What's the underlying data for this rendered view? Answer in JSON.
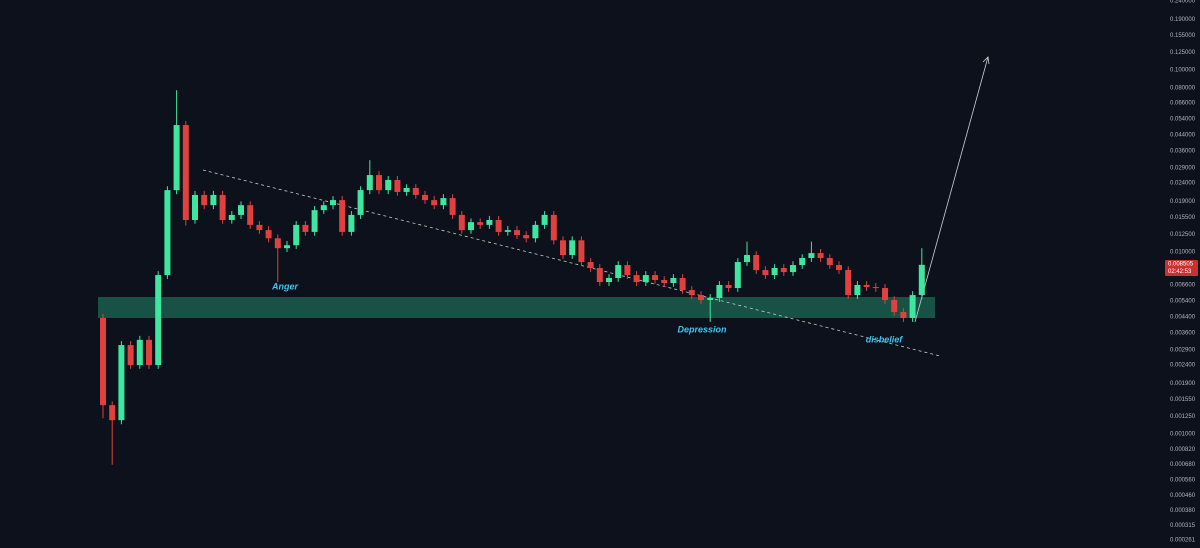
{
  "chart_data": {
    "type": "candlestick",
    "log_scale": true,
    "up_color": "#3ee6a0",
    "down_color": "#e0413f",
    "open": [
      0.00434,
      0.00144,
      0.00119,
      0.00308,
      0.00239,
      0.00329,
      0.00239,
      0.00747,
      0.0219,
      0.0499,
      0.015,
      0.0206,
      0.0181,
      0.0206,
      0.015,
      0.016,
      0.0181,
      0.0141,
      0.0132,
      0.0119,
      0.0105,
      0.0109,
      0.0141,
      0.0129,
      0.017,
      0.0181,
      0.0193,
      0.0129,
      0.016,
      0.0219,
      0.0265,
      0.0219,
      0.0249,
      0.0214,
      0.0225,
      0.0206,
      0.0193,
      0.0181,
      0.0198,
      0.016,
      0.0132,
      0.0146,
      0.0141,
      0.015,
      0.0129,
      0.0132,
      0.0124,
      0.0119,
      0.0141,
      0.016,
      0.0116,
      0.00963,
      0.0116,
      0.00881,
      0.00817,
      0.00684,
      0.0072,
      0.00848,
      0.00747,
      0.00684,
      0.00747,
      0.00702,
      0.00676,
      0.0072,
      0.00618,
      0.0058,
      0.00545,
      0.00559,
      0.00659,
      0.00634,
      0.00881,
      0.00963,
      0.00796,
      0.00747,
      0.00817,
      0.00776,
      0.00848,
      0.00927,
      0.00987,
      0.00927,
      0.00848,
      0.00796,
      0.0058,
      0.00659,
      0.00642,
      0.00634,
      0.00545,
      0.00468,
      0.00434,
      0.0058
    ],
    "high": [
      0.00456,
      0.00151,
      0.00324,
      0.00324,
      0.00346,
      0.00346,
      0.00785,
      0.023,
      0.0776,
      0.0525,
      0.0217,
      0.0217,
      0.0217,
      0.0217,
      0.0168,
      0.019,
      0.019,
      0.0148,
      0.0139,
      0.0125,
      0.0115,
      0.0148,
      0.0148,
      0.0179,
      0.019,
      0.0203,
      0.0203,
      0.0168,
      0.023,
      0.032,
      0.0278,
      0.0262,
      0.0262,
      0.0236,
      0.0236,
      0.0217,
      0.0203,
      0.0208,
      0.0208,
      0.0168,
      0.0153,
      0.0153,
      0.0158,
      0.0158,
      0.0139,
      0.0139,
      0.013,
      0.0148,
      0.0168,
      0.0168,
      0.0122,
      0.0122,
      0.0122,
      0.00925,
      0.00858,
      0.00756,
      0.0089,
      0.0089,
      0.00785,
      0.00785,
      0.00785,
      0.00737,
      0.00756,
      0.00756,
      0.00649,
      0.00609,
      0.00587,
      0.00692,
      0.00692,
      0.00925,
      0.0114,
      0.0101,
      0.00836,
      0.00858,
      0.00858,
      0.0089,
      0.00973,
      0.0114,
      0.0104,
      0.00973,
      0.0089,
      0.00836,
      0.00692,
      0.00692,
      0.00674,
      0.00666,
      0.00572,
      0.00491,
      0.00609,
      0.0105
    ],
    "low": [
      0.00122,
      0.000676,
      0.00113,
      0.00228,
      0.00228,
      0.00228,
      0.00228,
      0.00711,
      0.0208,
      0.014,
      0.0143,
      0.0172,
      0.0172,
      0.0143,
      0.0143,
      0.0152,
      0.0134,
      0.0126,
      0.0113,
      0.00684,
      0.01,
      0.0104,
      0.0123,
      0.0123,
      0.0162,
      0.0172,
      0.0123,
      0.0123,
      0.0152,
      0.0208,
      0.0208,
      0.0208,
      0.0204,
      0.0204,
      0.0196,
      0.0184,
      0.0172,
      0.0172,
      0.0152,
      0.0126,
      0.0126,
      0.0134,
      0.0134,
      0.0123,
      0.0123,
      0.0118,
      0.0113,
      0.0113,
      0.0134,
      0.011,
      0.00917,
      0.00917,
      0.00839,
      0.00778,
      0.00651,
      0.00651,
      0.00686,
      0.00711,
      0.00651,
      0.00651,
      0.00669,
      0.00644,
      0.00644,
      0.00589,
      0.00552,
      0.00519,
      0.00413,
      0.00532,
      0.00604,
      0.00604,
      0.00839,
      0.00758,
      0.00711,
      0.00711,
      0.00739,
      0.00739,
      0.00808,
      0.00883,
      0.00883,
      0.00808,
      0.00758,
      0.00552,
      0.00552,
      0.00611,
      0.00604,
      0.00519,
      0.00446,
      0.00413,
      0.00413,
      0.00552
    ],
    "close": [
      0.00144,
      0.00119,
      0.00308,
      0.00239,
      0.00329,
      0.00239,
      0.00747,
      0.0219,
      0.0499,
      0.015,
      0.0206,
      0.0181,
      0.0206,
      0.015,
      0.016,
      0.0181,
      0.0141,
      0.0132,
      0.0119,
      0.0105,
      0.0109,
      0.0141,
      0.0129,
      0.017,
      0.0181,
      0.0193,
      0.0129,
      0.016,
      0.0219,
      0.0265,
      0.0219,
      0.0249,
      0.0214,
      0.0225,
      0.0206,
      0.0193,
      0.0181,
      0.0198,
      0.016,
      0.0132,
      0.0146,
      0.0141,
      0.015,
      0.0129,
      0.0132,
      0.0124,
      0.0119,
      0.0141,
      0.016,
      0.0116,
      0.00963,
      0.0116,
      0.00881,
      0.00817,
      0.00684,
      0.0072,
      0.00848,
      0.00747,
      0.00684,
      0.00747,
      0.00702,
      0.00676,
      0.0072,
      0.00618,
      0.0058,
      0.00545,
      0.00559,
      0.00659,
      0.00634,
      0.00881,
      0.00963,
      0.00796,
      0.00747,
      0.00817,
      0.00776,
      0.00848,
      0.00927,
      0.00987,
      0.00927,
      0.00848,
      0.00796,
      0.0058,
      0.00659,
      0.00642,
      0.00634,
      0.00545,
      0.00468,
      0.00434,
      0.0058,
      0.008505
    ],
    "ylim": [
      0.000236,
      0.243
    ],
    "yticks": [
      {
        "value": 0.24,
        "label": "0.240000"
      },
      {
        "value": 0.19,
        "label": "0.190000"
      },
      {
        "value": 0.155,
        "label": "0.155000"
      },
      {
        "value": 0.125,
        "label": "0.125000"
      },
      {
        "value": 0.1,
        "label": "0.100000"
      },
      {
        "value": 0.08,
        "label": "0.080000"
      },
      {
        "value": 0.066,
        "label": "0.066000"
      },
      {
        "value": 0.054,
        "label": "0.054000"
      },
      {
        "value": 0.044,
        "label": "0.044000"
      },
      {
        "value": 0.036,
        "label": "0.036000"
      },
      {
        "value": 0.029,
        "label": "0.029000"
      },
      {
        "value": 0.024,
        "label": "0.024000"
      },
      {
        "value": 0.019,
        "label": "0.019000"
      },
      {
        "value": 0.0155,
        "label": "0.015500"
      },
      {
        "value": 0.0125,
        "label": "0.012500"
      },
      {
        "value": 0.01,
        "label": "0.010000"
      },
      {
        "value": 0.0066,
        "label": "0.006600"
      },
      {
        "value": 0.0054,
        "label": "0.005400"
      },
      {
        "value": 0.0044,
        "label": "0.004400"
      },
      {
        "value": 0.0036,
        "label": "0.003600"
      },
      {
        "value": 0.0029,
        "label": "0.002900"
      },
      {
        "value": 0.0024,
        "label": "0.002400"
      },
      {
        "value": 0.0019,
        "label": "0.001900"
      },
      {
        "value": 0.00155,
        "label": "0.001550"
      },
      {
        "value": 0.00125,
        "label": "0.001250"
      },
      {
        "value": 0.001,
        "label": "0.001000"
      },
      {
        "value": 0.00082,
        "label": "0.000820"
      },
      {
        "value": 0.00068,
        "label": "0.000680"
      },
      {
        "value": 0.00056,
        "label": "0.000560"
      },
      {
        "value": 0.00046,
        "label": "0.000460"
      },
      {
        "value": 0.00038,
        "label": "0.000380"
      },
      {
        "value": 0.000315,
        "label": "0.000315"
      },
      {
        "value": 0.000261,
        "label": "0.000261"
      }
    ],
    "last_price": 0.008505,
    "countdown": "02:42:53",
    "annotations": [
      "Anger",
      "Depression",
      "disbelief"
    ]
  }
}
